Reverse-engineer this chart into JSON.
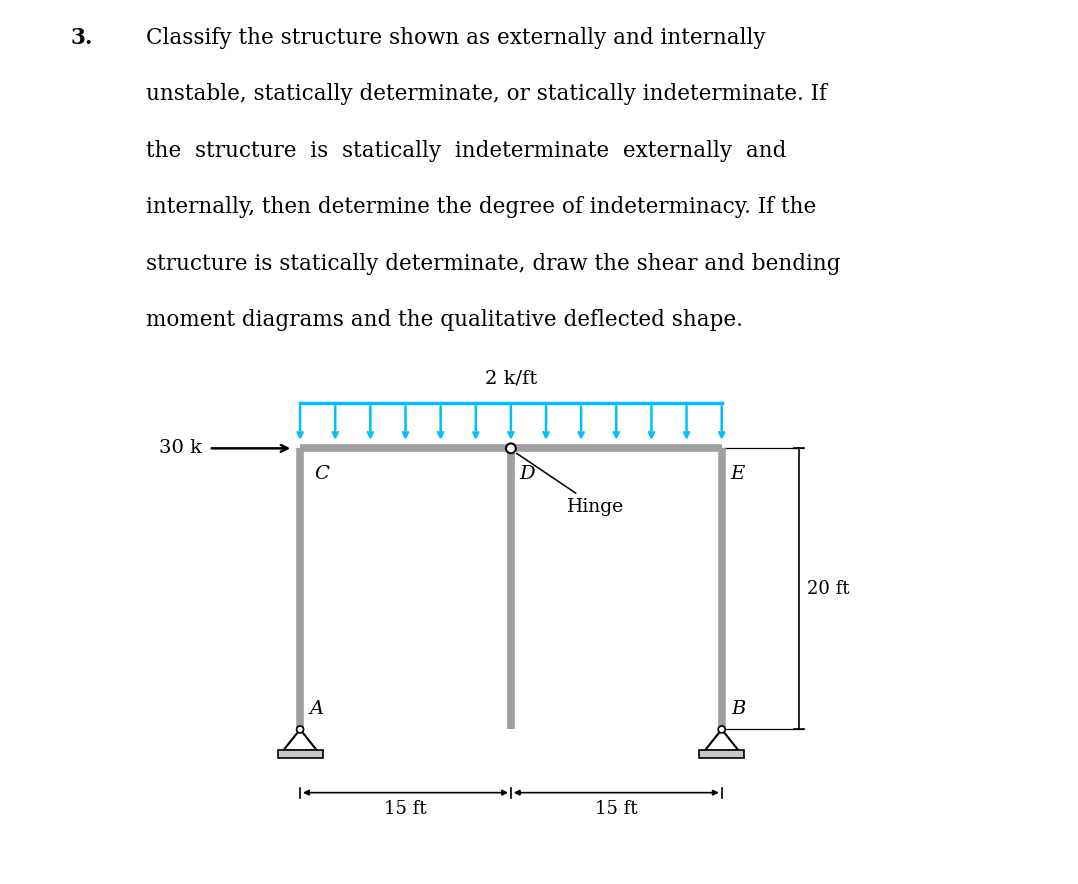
{
  "title_number": "3.",
  "title_lines": [
    "Classify the structure shown as externally and internally",
    "unstable, statically determinate, or statically indeterminate. If",
    "the  structure  is  statically  indeterminate  externally  and",
    "internally, then determine the degree of indeterminacy. If the",
    "structure is statically determinate, draw the shear and bending",
    "moment diagrams and the qualitative deflected shape."
  ],
  "load_label": "2 k/ft",
  "horiz_load_label": "30 k",
  "dim_horiz": "15 ft",
  "dim_vert": "20 ft",
  "hinge_label": "Hinge",
  "structure_color": "#a0a0a0",
  "load_color": "#00bfff",
  "text_color": "#000000",
  "background_color": "#ffffff",
  "n_load_arrows": 13,
  "struct_lw": 5.5,
  "text_fontsize": 15.5,
  "label_fontsize": 14
}
